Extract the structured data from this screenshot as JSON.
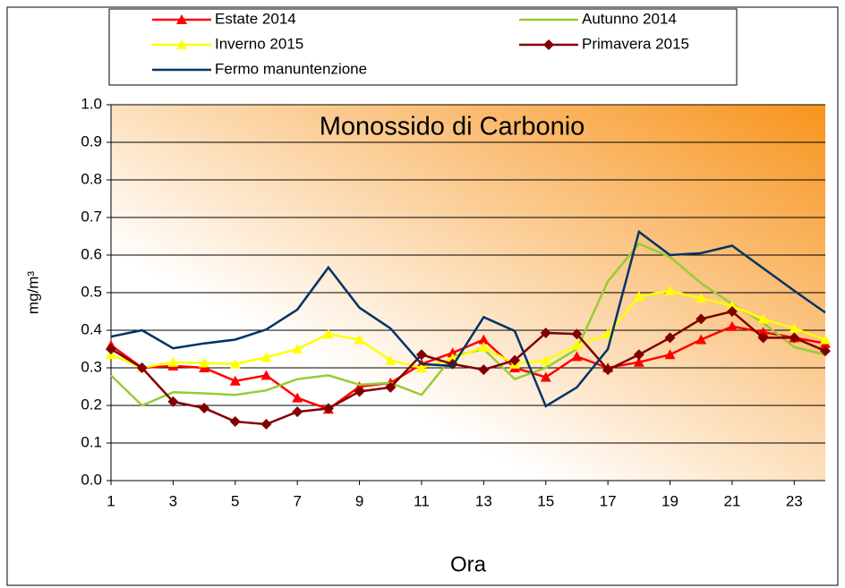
{
  "chart_data": {
    "type": "line",
    "title": "Monossido di Carbonio",
    "x_label": "Ora",
    "y_label": "mg/m³",
    "x": [
      1,
      2,
      3,
      4,
      5,
      6,
      7,
      8,
      9,
      10,
      11,
      12,
      13,
      14,
      15,
      16,
      17,
      18,
      19,
      20,
      21,
      22,
      23,
      24
    ],
    "xlim": [
      1,
      24
    ],
    "xticks": [
      1,
      3,
      5,
      7,
      9,
      11,
      13,
      15,
      17,
      19,
      21,
      23
    ],
    "ylim": [
      0,
      1
    ],
    "yticks": [
      {
        "value": 0,
        "label": "0.0"
      },
      0.1,
      0.2,
      0.3,
      0.4,
      0.5,
      0.6,
      0.7,
      0.8,
      0.9,
      {
        "value": 1,
        "label": "1.0"
      }
    ],
    "grid": true,
    "legend": "top",
    "series": [
      {
        "name": "Estate 2014",
        "color": "#ff0000",
        "marker": "triangle",
        "values": [
          0.36,
          0.3,
          0.305,
          0.3,
          0.265,
          0.28,
          0.22,
          0.19,
          0.25,
          0.26,
          0.31,
          0.34,
          0.375,
          0.3,
          0.275,
          0.33,
          0.3,
          0.315,
          0.335,
          0.375,
          0.41,
          0.395,
          0.38,
          0.365
        ]
      },
      {
        "name": "Autunno 2014",
        "color": "#99cc33",
        "marker": "none",
        "values": [
          0.28,
          0.2,
          0.235,
          0.232,
          0.228,
          0.24,
          0.27,
          0.28,
          0.255,
          0.26,
          0.228,
          0.33,
          0.35,
          0.27,
          0.3,
          0.35,
          0.53,
          0.63,
          0.595,
          0.525,
          0.47,
          0.42,
          0.355,
          0.335
        ]
      },
      {
        "name": "Inverno 2015",
        "color": "#ffff00",
        "marker": "triangle",
        "values": [
          0.335,
          0.3,
          0.315,
          0.313,
          0.31,
          0.328,
          0.35,
          0.39,
          0.375,
          0.32,
          0.3,
          0.325,
          0.355,
          0.31,
          0.32,
          0.36,
          0.39,
          0.49,
          0.505,
          0.485,
          0.465,
          0.43,
          0.405,
          0.375
        ]
      },
      {
        "name": "Primavera 2015",
        "color": "#800000",
        "marker": "diamond",
        "values": [
          0.35,
          0.3,
          0.21,
          0.193,
          0.157,
          0.15,
          0.183,
          0.192,
          0.237,
          0.248,
          0.335,
          0.31,
          0.295,
          0.32,
          0.393,
          0.39,
          0.295,
          0.335,
          0.38,
          0.43,
          0.45,
          0.38,
          0.38,
          0.345
        ]
      },
      {
        "name": "Fermo manuntenzione",
        "color": "#003366",
        "marker": "none",
        "values": [
          0.383,
          0.4,
          0.352,
          0.365,
          0.375,
          0.402,
          0.455,
          0.567,
          0.46,
          0.405,
          0.31,
          0.305,
          0.435,
          0.398,
          0.198,
          0.248,
          0.35,
          0.662,
          0.6,
          0.605,
          0.625,
          0.565,
          0.505,
          0.447
        ]
      }
    ]
  }
}
